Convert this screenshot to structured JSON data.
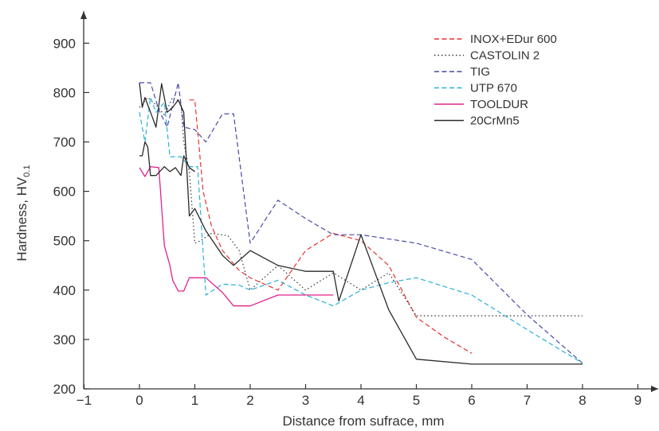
{
  "chart_data": {
    "type": "line",
    "xlabel": "Distance from sufrace, mm",
    "ylabel_main": "Hardness, HV",
    "ylabel_sub": "0.1",
    "xlim": [
      -1,
      9
    ],
    "ylim": [
      200,
      900
    ],
    "xticks": [
      "−1",
      "0",
      "1",
      "2",
      "3",
      "4",
      "5",
      "6",
      "7",
      "8",
      "9"
    ],
    "xtick_values": [
      -1,
      0,
      1,
      2,
      3,
      4,
      5,
      6,
      7,
      8,
      9
    ],
    "yticks": [
      "200",
      "300",
      "400",
      "500",
      "600",
      "700",
      "800",
      "900"
    ],
    "ytick_values": [
      200,
      300,
      400,
      500,
      600,
      700,
      800,
      900
    ],
    "legend_position": "top-right",
    "series": [
      {
        "name": "INOX+EDur 600",
        "color": "#e8322f",
        "dash": "dashed",
        "points": [
          [
            0.9,
            785
          ],
          [
            1.0,
            785
          ],
          [
            1.15,
            600
          ],
          [
            1.3,
            530
          ],
          [
            1.5,
            480
          ],
          [
            1.8,
            440
          ],
          [
            2.0,
            425
          ],
          [
            2.5,
            400
          ],
          [
            3.0,
            480
          ],
          [
            3.5,
            515
          ],
          [
            4.0,
            500
          ],
          [
            4.5,
            450
          ],
          [
            5.0,
            345
          ],
          [
            5.5,
            305
          ],
          [
            6.0,
            272
          ]
        ]
      },
      {
        "name": "CASTOLIN 2",
        "color": "#333333",
        "dash": "dotted",
        "points": [
          [
            0.0,
            770
          ],
          [
            0.15,
            790
          ],
          [
            0.3,
            775
          ],
          [
            0.45,
            755
          ],
          [
            0.6,
            790
          ],
          [
            0.75,
            780
          ],
          [
            0.8,
            700
          ],
          [
            0.9,
            640
          ],
          [
            1.0,
            495
          ],
          [
            1.1,
            500
          ],
          [
            1.3,
            515
          ],
          [
            1.6,
            510
          ],
          [
            1.8,
            480
          ],
          [
            2.0,
            400
          ],
          [
            2.5,
            450
          ],
          [
            3.0,
            400
          ],
          [
            3.5,
            435
          ],
          [
            4.0,
            400
          ],
          [
            4.5,
            435
          ],
          [
            5.0,
            348
          ],
          [
            6.0,
            348
          ],
          [
            7.0,
            348
          ],
          [
            8.0,
            348
          ]
        ]
      },
      {
        "name": "TIG",
        "color": "#4a4aa8",
        "dash": "dashed",
        "points": [
          [
            0.0,
            820
          ],
          [
            0.2,
            820
          ],
          [
            0.35,
            765
          ],
          [
            0.5,
            730
          ],
          [
            0.7,
            820
          ],
          [
            0.8,
            730
          ],
          [
            1.0,
            725
          ],
          [
            1.2,
            700
          ],
          [
            1.5,
            757
          ],
          [
            1.7,
            757
          ],
          [
            2.0,
            495
          ],
          [
            2.5,
            582
          ],
          [
            3.0,
            545
          ],
          [
            3.5,
            512
          ],
          [
            4.0,
            512
          ],
          [
            5.0,
            495
          ],
          [
            6.0,
            462
          ],
          [
            7.0,
            350
          ],
          [
            8.0,
            252
          ]
        ]
      },
      {
        "name": "UTP 670",
        "color": "#2ab0d8",
        "dash": "dashed",
        "points": [
          [
            0.0,
            760
          ],
          [
            0.1,
            700
          ],
          [
            0.2,
            790
          ],
          [
            0.3,
            760
          ],
          [
            0.45,
            780
          ],
          [
            0.55,
            670
          ],
          [
            0.75,
            670
          ],
          [
            0.9,
            650
          ],
          [
            1.05,
            650
          ],
          [
            1.2,
            390
          ],
          [
            1.5,
            412
          ],
          [
            1.8,
            410
          ],
          [
            2.0,
            400
          ],
          [
            2.5,
            420
          ],
          [
            3.0,
            390
          ],
          [
            3.5,
            368
          ],
          [
            4.0,
            400
          ],
          [
            4.5,
            415
          ],
          [
            5.0,
            425
          ],
          [
            6.0,
            390
          ],
          [
            7.0,
            320
          ],
          [
            8.0,
            252
          ]
        ]
      },
      {
        "name": "TOOLDUR",
        "color": "#e0248e",
        "dash": "solid",
        "points": [
          [
            0.0,
            648
          ],
          [
            0.1,
            630
          ],
          [
            0.2,
            650
          ],
          [
            0.35,
            648
          ],
          [
            0.45,
            490
          ],
          [
            0.55,
            450
          ],
          [
            0.6,
            420
          ],
          [
            0.7,
            398
          ],
          [
            0.8,
            398
          ],
          [
            0.9,
            425
          ],
          [
            1.0,
            425
          ],
          [
            1.2,
            425
          ],
          [
            1.5,
            395
          ],
          [
            1.7,
            368
          ],
          [
            2.0,
            368
          ],
          [
            2.5,
            390
          ],
          [
            3.0,
            390
          ],
          [
            3.5,
            390
          ]
        ]
      },
      {
        "name": "20CrMn5",
        "color": "#2a2a2a",
        "dash": "solid",
        "points": [
          [
            0.0,
            820
          ],
          [
            0.05,
            770
          ],
          [
            0.1,
            790
          ],
          [
            0.2,
            760
          ],
          [
            0.3,
            730
          ],
          [
            0.4,
            818
          ],
          [
            0.5,
            760
          ],
          [
            0.6,
            770
          ],
          [
            0.7,
            785
          ],
          [
            0.8,
            760
          ],
          [
            0.9,
            550
          ],
          [
            1.0,
            565
          ],
          [
            1.2,
            520
          ],
          [
            1.5,
            470
          ],
          [
            1.7,
            450
          ],
          [
            2.0,
            480
          ],
          [
            2.5,
            450
          ],
          [
            3.0,
            438
          ],
          [
            3.5,
            438
          ],
          [
            3.6,
            378
          ],
          [
            4.0,
            512
          ],
          [
            4.5,
            360
          ],
          [
            5.0,
            260
          ],
          [
            6.0,
            250
          ],
          [
            7.0,
            250
          ],
          [
            8.0,
            250
          ]
        ]
      },
      {
        "name": "",
        "color": "#2a2a2a",
        "dash": "solid",
        "points": [
          [
            0.0,
            672
          ],
          [
            0.05,
            672
          ],
          [
            0.1,
            700
          ],
          [
            0.15,
            690
          ],
          [
            0.2,
            632
          ],
          [
            0.3,
            632
          ],
          [
            0.45,
            650
          ],
          [
            0.55,
            640
          ],
          [
            0.65,
            648
          ],
          [
            0.75,
            632
          ],
          [
            0.8,
            672
          ],
          [
            0.9,
            648
          ],
          [
            1.0,
            640
          ]
        ]
      }
    ]
  }
}
